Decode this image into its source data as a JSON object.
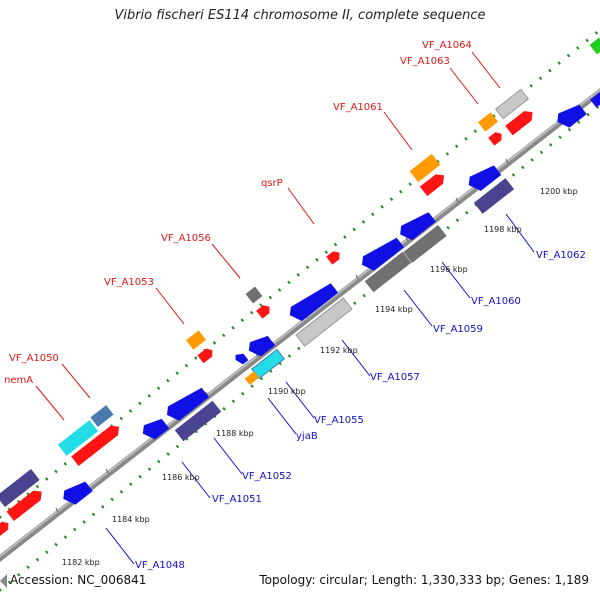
{
  "title": "Vibrio fischeri ES114 chromosome II, complete sequence",
  "footer": {
    "accession": "Accession: NC_006841",
    "summary": "Topology: circular; Length: 1,330,333 bp; Genes: 1,189"
  },
  "colors": {
    "backbone": "#888888",
    "forward_red": "#ff1414",
    "forward_orange": "#ff9a00",
    "grey_gene": "#c8c8c8",
    "reverse_blue": "#1010e6",
    "reverse_navy": "#4a4490",
    "dark_grey": "#707070",
    "cyan": "#22dde8",
    "steel": "#4a7bb0",
    "dots": "#228822",
    "label_forward": "#e01818",
    "label_reverse": "#1010c8"
  },
  "tick_labels": [
    "1182 kbp",
    "1184 kbp",
    "1186 kbp",
    "1188 kbp",
    "1190 kbp",
    "1192 kbp",
    "1194 kbp",
    "1196 kbp",
    "1198 kbp",
    "1200 kbp"
  ],
  "forward_labels": [
    "VF_A1064",
    "VF_A1063",
    "VF_A1061",
    "qsrP",
    "VF_A1056",
    "VF_A1053",
    "VF_A1050",
    "nemA"
  ],
  "reverse_labels": [
    "VF_A1062",
    "VF_A1060",
    "VF_A1059",
    "VF_A1057",
    "VF_A1055",
    "yjaB",
    "VF_A1052",
    "VF_A1051",
    "VF_A1048"
  ]
}
